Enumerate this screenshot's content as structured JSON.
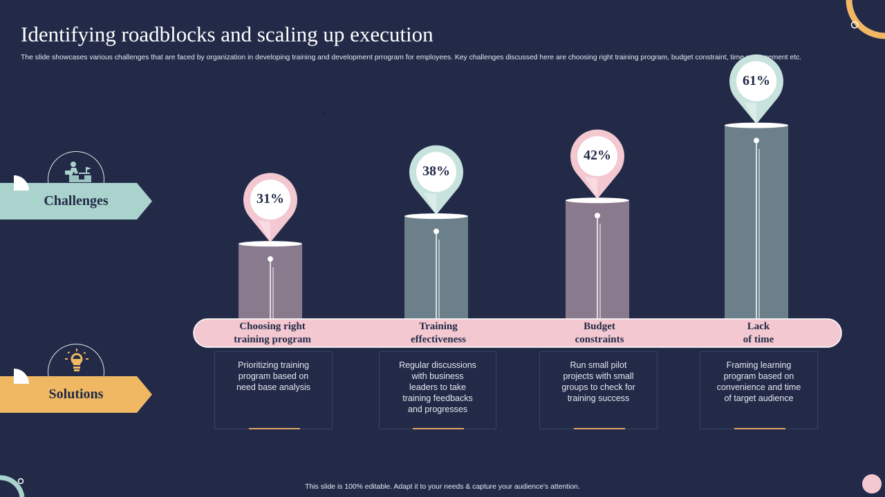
{
  "title": "Identifying roadblocks and scaling up execution",
  "subtitle": "The slide showcases various challenges that are faced by organization in developing training and development prrogram for employees. Key challenges discussed here are choosing right training program, budget constraint, time management etc.",
  "footer": "This slide is 100% editable.  Adapt it to your needs & capture your audience's attention.",
  "sections": {
    "challenges_label": "Challenges",
    "solutions_label": "Solutions",
    "challenges_icon": "person-climbing-stairs-icon",
    "solutions_icon": "lightbulb-gear-icon"
  },
  "colors": {
    "background": "#222a48",
    "challenges": "#a9d3cc",
    "solutions": "#f0b863",
    "band": "#f3c8d1",
    "bar_mauve": "#8a7a8e",
    "bar_slate": "#6b808b",
    "pin_pink": "#f3c8d1",
    "pin_teal": "#c8e3dd"
  },
  "chart_data": {
    "type": "bar",
    "categories": [
      "Choosing right training program",
      "Training effectiveness",
      "Budget constraints",
      "Lack of time"
    ],
    "category_lines": [
      [
        "Choosing right",
        "training program"
      ],
      [
        "Training",
        "effectiveness"
      ],
      [
        "Budget",
        "constraints"
      ],
      [
        "Lack",
        "of time"
      ]
    ],
    "values": [
      31,
      38,
      42,
      61
    ],
    "value_labels": [
      "31%",
      "38%",
      "42%",
      "61%"
    ],
    "unit": "%",
    "title": "",
    "xlabel": "",
    "ylabel": "",
    "grid": false,
    "legend": "none"
  },
  "solutions": [
    [
      "Prioritizing training",
      "program based on",
      "need base analysis"
    ],
    [
      "Regular discussions",
      "with business",
      "leaders to take",
      "training feedbacks",
      "and progresses"
    ],
    [
      "Run small pilot",
      "projects with small",
      "groups to check for",
      "training success"
    ],
    [
      "Framing learning",
      "program based on",
      "convenience  and time",
      "of target audience"
    ]
  ]
}
